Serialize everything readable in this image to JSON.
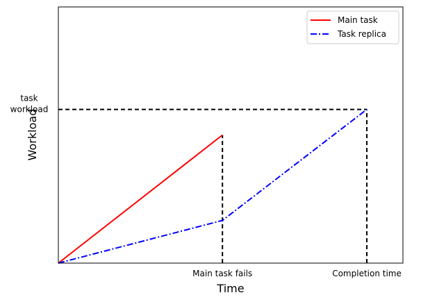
{
  "chart_data": {
    "type": "line",
    "title": "",
    "xlabel": "Time",
    "ylabel": "Workload",
    "xlim": [
      0,
      1.05
    ],
    "ylim": [
      0,
      1.5
    ],
    "x_tick_labels": [
      {
        "x": 0.5,
        "label": "Main task fails"
      },
      {
        "x": 0.94,
        "label": "Completion time"
      }
    ],
    "y_tick_labels": [
      {
        "y": 0.9,
        "label": "task\nworkload"
      }
    ],
    "series": [
      {
        "name": "Main task",
        "color": "#ff0000",
        "style": "solid",
        "x": [
          0,
          0.5
        ],
        "y": [
          0,
          0.75
        ]
      },
      {
        "name": "Task replica",
        "color": "#0000ff",
        "style": "dashdot",
        "x": [
          0,
          0.5,
          0.94
        ],
        "y": [
          0,
          0.25,
          0.9
        ]
      }
    ],
    "reference_lines": [
      {
        "color": "#000000",
        "style": "dashed",
        "x": [
          0,
          0.94
        ],
        "y": [
          0.9,
          0.9
        ]
      },
      {
        "color": "#000000",
        "style": "dashed",
        "x": [
          0.5,
          0.5
        ],
        "y": [
          0,
          0.75
        ]
      },
      {
        "color": "#000000",
        "style": "dashed",
        "x": [
          0.94,
          0.94
        ],
        "y": [
          0,
          0.9
        ]
      }
    ],
    "legend": "top-right",
    "grid": false
  }
}
